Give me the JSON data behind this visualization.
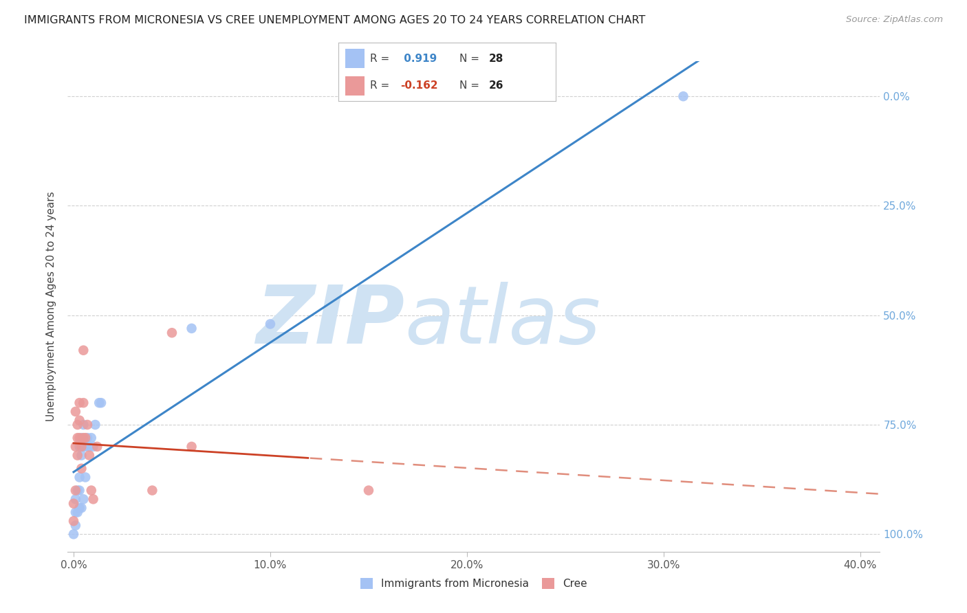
{
  "title": "IMMIGRANTS FROM MICRONESIA VS CREE UNEMPLOYMENT AMONG AGES 20 TO 24 YEARS CORRELATION CHART",
  "source": "Source: ZipAtlas.com",
  "ylabel": "Unemployment Among Ages 20 to 24 years",
  "xlabel_ticks": [
    "0.0%",
    "10.0%",
    "20.0%",
    "30.0%",
    "40.0%"
  ],
  "xlabel_vals": [
    0.0,
    0.1,
    0.2,
    0.3,
    0.4
  ],
  "ylabel_ticks_right": [
    "100.0%",
    "75.0%",
    "50.0%",
    "25.0%",
    "0.0%"
  ],
  "ylabel_vals": [
    1.0,
    0.75,
    0.5,
    0.25,
    0.0
  ],
  "xlim": [
    -0.003,
    0.41
  ],
  "ylim": [
    -0.04,
    1.08
  ],
  "ytick_vals": [
    0.0,
    0.25,
    0.5,
    0.75,
    1.0
  ],
  "blue_R": 0.919,
  "blue_N": 28,
  "pink_R": -0.162,
  "pink_N": 26,
  "blue_color": "#a4c2f4",
  "pink_color": "#ea9999",
  "blue_line_color": "#3d85c8",
  "pink_line_color": "#cc4125",
  "right_tick_color": "#6fa8dc",
  "watermark_zip_color": "#cfe2f3",
  "watermark_atlas_color": "#cfe2f3",
  "background_color": "#ffffff",
  "grid_color": "#d0d0d0",
  "blue_x": [
    0.0,
    0.001,
    0.001,
    0.001,
    0.002,
    0.002,
    0.003,
    0.003,
    0.003,
    0.003,
    0.004,
    0.004,
    0.004,
    0.005,
    0.005,
    0.005,
    0.006,
    0.006,
    0.007,
    0.008,
    0.009,
    0.01,
    0.011,
    0.013,
    0.014,
    0.06,
    0.1,
    0.31
  ],
  "blue_y": [
    0.0,
    0.02,
    0.05,
    0.08,
    0.05,
    0.1,
    0.06,
    0.1,
    0.13,
    0.2,
    0.18,
    0.22,
    0.06,
    0.08,
    0.2,
    0.25,
    0.2,
    0.13,
    0.22,
    0.2,
    0.22,
    0.2,
    0.25,
    0.3,
    0.3,
    0.47,
    0.48,
    1.0
  ],
  "pink_x": [
    0.0,
    0.0,
    0.001,
    0.001,
    0.001,
    0.002,
    0.002,
    0.002,
    0.003,
    0.003,
    0.003,
    0.004,
    0.004,
    0.005,
    0.005,
    0.005,
    0.006,
    0.007,
    0.008,
    0.009,
    0.01,
    0.012,
    0.04,
    0.05,
    0.06,
    0.15
  ],
  "pink_y": [
    0.03,
    0.07,
    0.1,
    0.2,
    0.28,
    0.18,
    0.22,
    0.25,
    0.22,
    0.26,
    0.3,
    0.15,
    0.2,
    0.22,
    0.3,
    0.42,
    0.22,
    0.25,
    0.18,
    0.1,
    0.08,
    0.2,
    0.1,
    0.46,
    0.2,
    0.1
  ]
}
